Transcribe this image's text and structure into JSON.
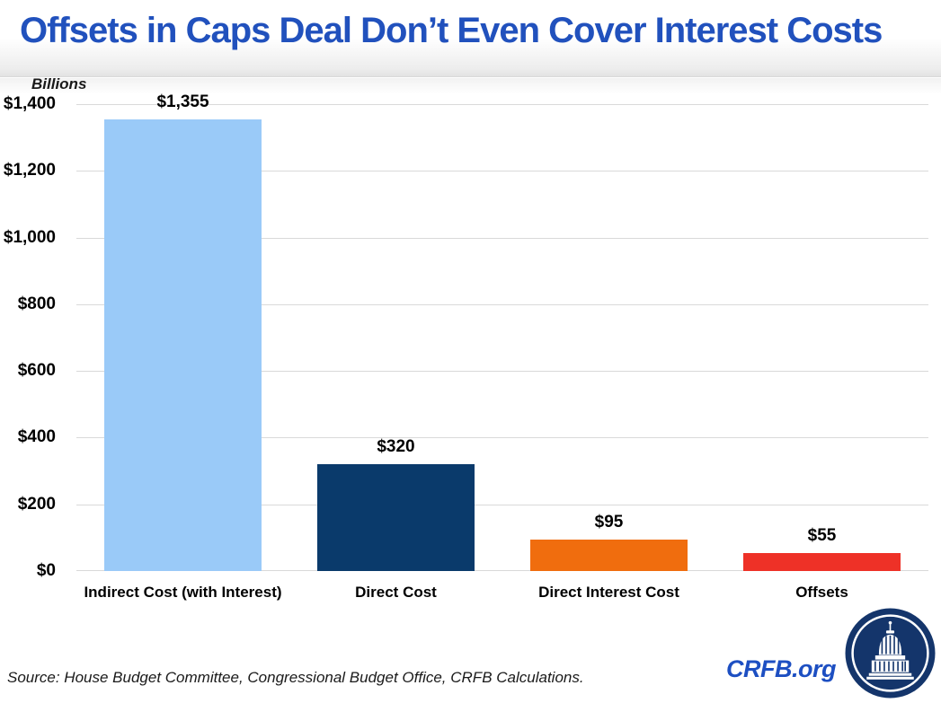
{
  "header": {
    "title": "Offsets in Caps Deal Don’t Even Cover Interest Costs"
  },
  "chart_data": {
    "type": "bar",
    "title": "Offsets in Caps Deal Don’t Even Cover Interest Costs",
    "ylabel": "Billions",
    "xlabel": "",
    "categories": [
      "Indirect Cost (with Interest)",
      "Direct Cost",
      "Direct Interest Cost",
      "Offsets"
    ],
    "values": [
      1355,
      320,
      95,
      55
    ],
    "value_labels": [
      "$1,355",
      "$320",
      "$95",
      "$55"
    ],
    "bar_colors": [
      "#9ACAF8",
      "#0A3A6B",
      "#F06D0E",
      "#EE3127"
    ],
    "ylim": [
      0,
      1400
    ],
    "yticks": [
      0,
      200,
      400,
      600,
      800,
      1000,
      1200,
      1400
    ],
    "ytick_labels": [
      "$0",
      "$200",
      "$400",
      "$600",
      "$800",
      "$1,000",
      "$1,200",
      "$1,400"
    ],
    "grid": true,
    "legend": false
  },
  "footer": {
    "source": "Source: House Budget Committee, Congressional Budget Office, CRFB Calculations.",
    "site": "CRFB.org"
  },
  "colors": {
    "title_blue": "#2151BD",
    "site_blue": "#1D4FC2",
    "gridline": "#D9D9D9",
    "logo_navy": "#14356B"
  }
}
